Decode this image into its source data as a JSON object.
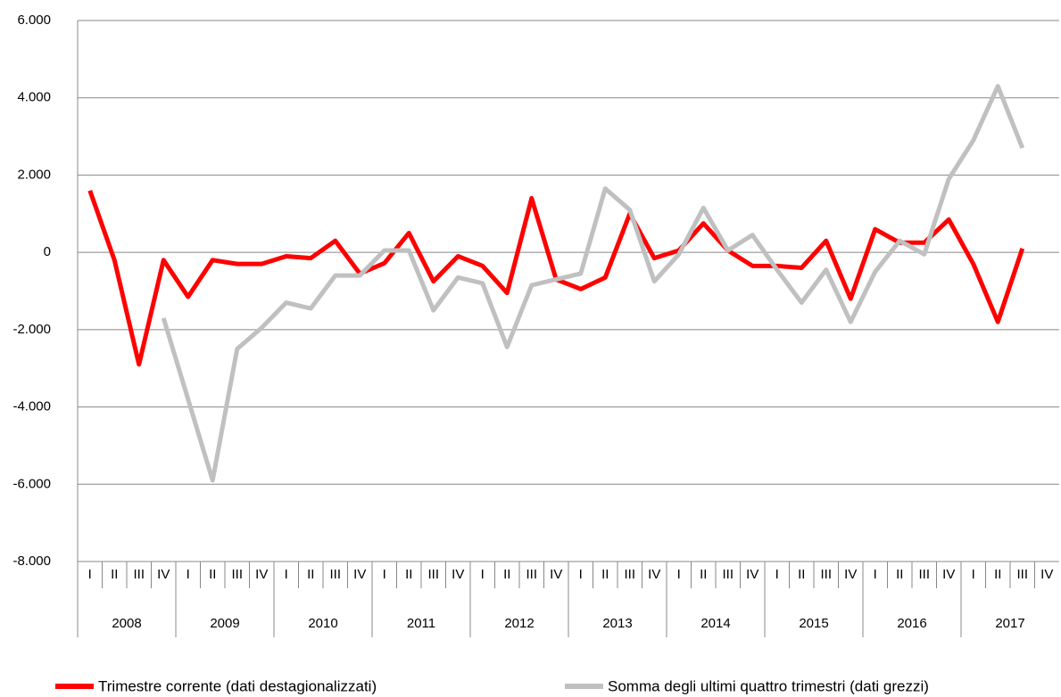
{
  "chart_data": {
    "type": "line",
    "categories": [
      "I",
      "II",
      "III",
      "IV",
      "I",
      "II",
      "III",
      "IV",
      "I",
      "II",
      "III",
      "IV",
      "I",
      "II",
      "III",
      "IV",
      "I",
      "II",
      "III",
      "IV",
      "I",
      "II",
      "III",
      "IV",
      "I",
      "II",
      "III",
      "IV",
      "I",
      "II",
      "III",
      "IV",
      "I",
      "II",
      "III",
      "IV",
      "I",
      "II",
      "III",
      "IV"
    ],
    "years": [
      "2008",
      "2009",
      "2010",
      "2011",
      "2012",
      "2013",
      "2014",
      "2015",
      "2016",
      "2017"
    ],
    "series": [
      {
        "name": "Trimestre corrente (dati destagionalizzati)",
        "color": "#ff0000",
        "values": [
          1600,
          -200,
          -2900,
          -200,
          -1150,
          -200,
          -300,
          -300,
          -100,
          -150,
          300,
          -550,
          -280,
          500,
          -750,
          -100,
          -350,
          -1050,
          1400,
          -700,
          -950,
          -650,
          1000,
          -150,
          50,
          750,
          50,
          -350,
          -350,
          -400,
          300,
          -1200,
          600,
          250,
          250,
          850,
          -300,
          -1800,
          100,
          null
        ]
      },
      {
        "name": "Somma degli ultimi quattro trimestri (dati grezzi)",
        "color": "#c0c0c0",
        "values": [
          null,
          null,
          null,
          -1700,
          -3800,
          -5900,
          -2500,
          -1950,
          -1300,
          -1450,
          -600,
          -600,
          50,
          50,
          -1500,
          -650,
          -800,
          -2450,
          -850,
          -700,
          -550,
          1650,
          1100,
          -750,
          -50,
          1150,
          50,
          450,
          -450,
          -1300,
          -450,
          -1800,
          -500,
          300,
          -50,
          1900,
          2900,
          4300,
          2700,
          null
        ]
      }
    ],
    "ylim": [
      -8000,
      6000
    ],
    "yticks": [
      {
        "value": -8000,
        "label": "-8.000"
      },
      {
        "value": -6000,
        "label": "-6.000"
      },
      {
        "value": -4000,
        "label": "-4.000"
      },
      {
        "value": -2000,
        "label": "-2.000"
      },
      0,
      {
        "value": 2000,
        "label": "2.000"
      },
      {
        "value": 4000,
        "label": "4.000"
      },
      {
        "value": 6000,
        "label": "6.000"
      }
    ],
    "grid": true
  }
}
